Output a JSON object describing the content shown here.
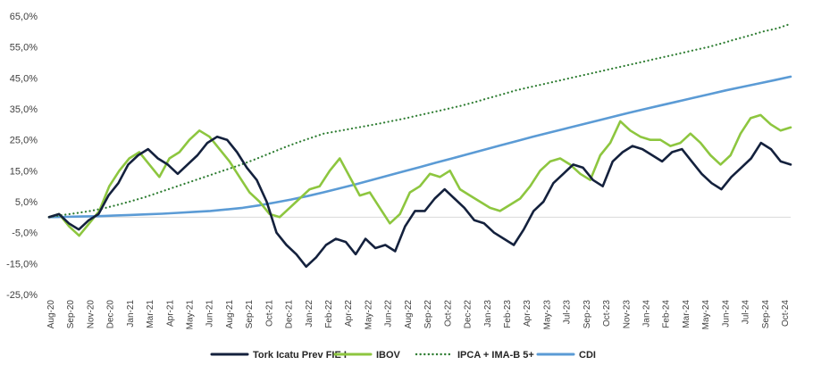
{
  "chart_data": {
    "type": "line",
    "title": "",
    "xlabel": "",
    "ylabel": "",
    "ylim": [
      -25,
      65
    ],
    "yticks": [
      -25,
      -15,
      -5,
      5,
      15,
      25,
      35,
      45,
      55,
      65
    ],
    "ytick_labels": [
      "-25,0%",
      "-15,0%",
      "-5,0%",
      "5,0%",
      "15,0%",
      "25,0%",
      "35,0%",
      "45,0%",
      "55,0%",
      "65,0%"
    ],
    "xtick_labels": [
      "Aug-20",
      "Sep-20",
      "Nov-20",
      "Dec-20",
      "Jan-21",
      "Mar-21",
      "Apr-21",
      "May-21",
      "Jun-21",
      "Aug-21",
      "Sep-21",
      "Oct-21",
      "Dec-21",
      "Jan-22",
      "Feb-22",
      "Apr-22",
      "May-22",
      "Jun-22",
      "Aug-22",
      "Sep-22",
      "Oct-22",
      "Dec-22",
      "Jan-23",
      "Feb-23",
      "Apr-23",
      "May-23",
      "Jul-23",
      "Sep-23",
      "Oct-23",
      "Nov-23",
      "Jan-24",
      "Feb-24",
      "Mar-24",
      "May-24",
      "Jun-24",
      "Jul-24",
      "Sep-24",
      "Oct-24"
    ],
    "grid": false,
    "legend_position": "bottom",
    "series": [
      {
        "name": "Tork Icatu Prev FIE I",
        "color": "#14213d",
        "style": "solid",
        "values": [
          0,
          1,
          -2,
          -4,
          -1,
          1,
          7,
          11,
          17,
          20,
          22,
          19,
          17,
          14,
          17,
          20,
          24,
          26,
          25,
          21,
          16,
          12,
          5,
          -5,
          -9,
          -12,
          -16,
          -13,
          -9,
          -7,
          -8,
          -12,
          -7,
          -10,
          -9,
          -11,
          -3,
          2,
          2,
          6,
          9,
          6,
          3,
          -1,
          -2,
          -5,
          -7,
          -9,
          -4,
          2,
          5,
          11,
          14,
          17,
          16,
          12,
          10,
          18,
          21,
          23,
          22,
          20,
          18,
          21,
          22,
          18,
          14,
          11,
          9,
          13,
          16,
          19,
          24,
          22,
          18,
          17
        ]
      },
      {
        "name": "IBOV",
        "color": "#8dc63f",
        "style": "solid",
        "values": [
          0,
          1,
          -3,
          -6,
          -2,
          2,
          10,
          15,
          19,
          21,
          17,
          13,
          19,
          21,
          25,
          28,
          26,
          22,
          18,
          13,
          8,
          5,
          1,
          0,
          3,
          6,
          9,
          10,
          15,
          19,
          13,
          7,
          8,
          3,
          -2,
          1,
          8,
          10,
          14,
          13,
          15,
          9,
          7,
          5,
          3,
          2,
          4,
          6,
          10,
          15,
          18,
          19,
          17,
          14,
          12,
          20,
          24,
          31,
          28,
          26,
          25,
          25,
          23,
          24,
          27,
          24,
          20,
          17,
          20,
          27,
          32,
          33,
          30,
          28,
          29
        ]
      },
      {
        "name": "IPCA + IMA-B 5+",
        "color": "#2e7d32",
        "style": "dotted",
        "values": [
          0,
          0.7,
          1.3,
          2,
          2.9,
          4,
          5.2,
          6.5,
          8,
          9.5,
          11,
          12.5,
          14,
          15.5,
          17,
          18.7,
          20.5,
          22.3,
          24,
          25.5,
          27,
          27.8,
          28.6,
          29.4,
          30.2,
          31.1,
          32,
          33,
          34,
          35,
          36,
          37.2,
          38.5,
          39.7,
          41,
          42,
          43,
          44,
          45,
          46,
          47,
          48,
          49,
          50,
          51,
          52,
          53,
          54,
          55,
          56.2,
          57.5,
          58.7,
          60,
          61,
          62.5
        ]
      },
      {
        "name": "CDI",
        "color": "#5b9bd5",
        "style": "solid",
        "values": [
          0,
          0.1,
          0.2,
          0.3,
          0.5,
          0.7,
          0.9,
          1.1,
          1.4,
          1.7,
          2,
          2.5,
          3,
          3.8,
          4.7,
          5.7,
          6.8,
          8,
          9.3,
          10.6,
          12,
          13.4,
          14.8,
          16.2,
          17.6,
          19,
          20.4,
          21.8,
          23.2,
          24.6,
          26,
          27.3,
          28.6,
          29.9,
          31.2,
          32.5,
          33.8,
          35,
          36.2,
          37.4,
          38.6,
          39.8,
          41,
          42.1,
          43.2,
          44.3,
          45.4
        ]
      }
    ]
  }
}
